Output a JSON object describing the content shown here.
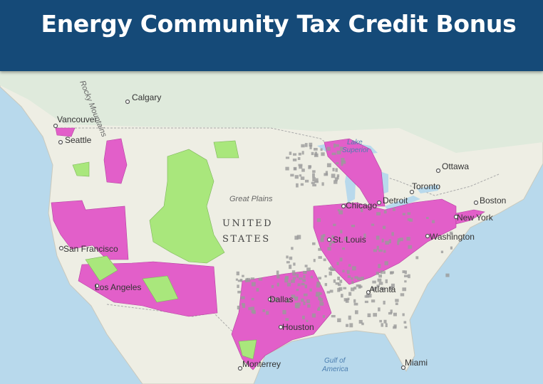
{
  "header": {
    "title": "Energy Community Tax Credit Bonus"
  },
  "map": {
    "labels": [
      {
        "text": "Calgary"
      },
      {
        "text": "Vancouver"
      },
      {
        "text": "Seattle"
      },
      {
        "text": "Rocky Mountains"
      },
      {
        "text": "Great Plains"
      },
      {
        "text": "UNITED"
      },
      {
        "text": "STATES"
      },
      {
        "text": "Lake"
      },
      {
        "text": "Superior"
      },
      {
        "text": "Ottawa"
      },
      {
        "text": "Toronto"
      },
      {
        "text": "Boston"
      },
      {
        "text": "New York"
      },
      {
        "text": "Detroit"
      },
      {
        "text": "Chicago"
      },
      {
        "text": "Washington"
      },
      {
        "text": "St. Louis"
      },
      {
        "text": "San Francisco"
      },
      {
        "text": "Los Angeles"
      },
      {
        "text": "Dallas"
      },
      {
        "text": "Houston"
      },
      {
        "text": "Atlanta"
      },
      {
        "text": "Monterrey"
      },
      {
        "text": "Gulf of"
      },
      {
        "text": "America"
      },
      {
        "text": "Miami"
      }
    ]
  }
}
